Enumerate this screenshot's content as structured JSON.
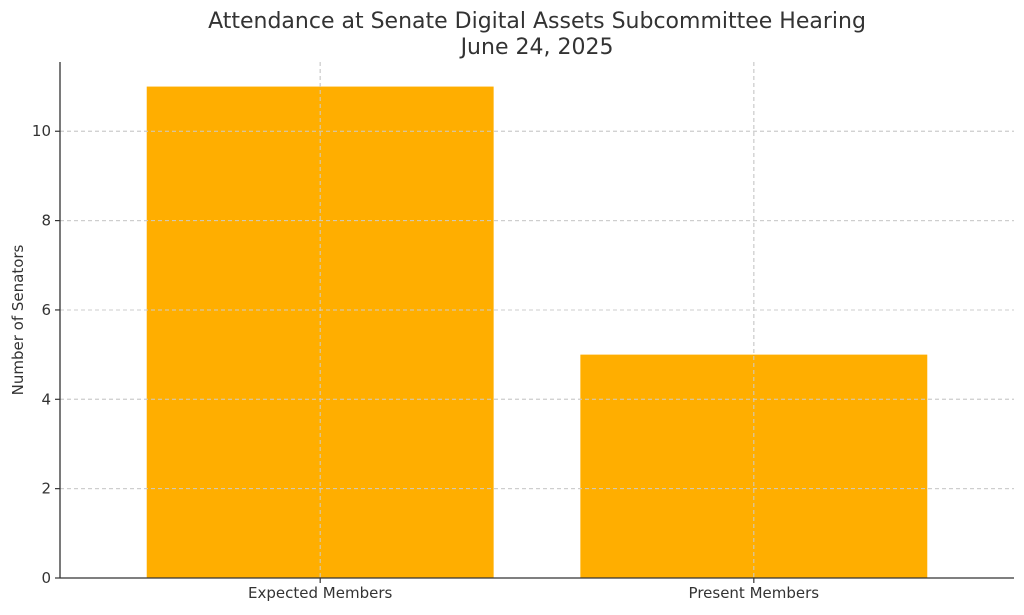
{
  "chart_data": {
    "type": "bar",
    "title": "Attendance at Senate Digital Assets Subcommittee Hearing",
    "subtitle": "June 24, 2025",
    "xlabel": "",
    "ylabel": "Number of Senators",
    "categories": [
      "Expected Members",
      "Present Members"
    ],
    "values": [
      11,
      5
    ],
    "ylim": [
      0,
      11.55
    ],
    "yticks": [
      0,
      2,
      4,
      6,
      8,
      10
    ],
    "grid": true,
    "legend": "none",
    "bar_color": "#FFAE00"
  }
}
